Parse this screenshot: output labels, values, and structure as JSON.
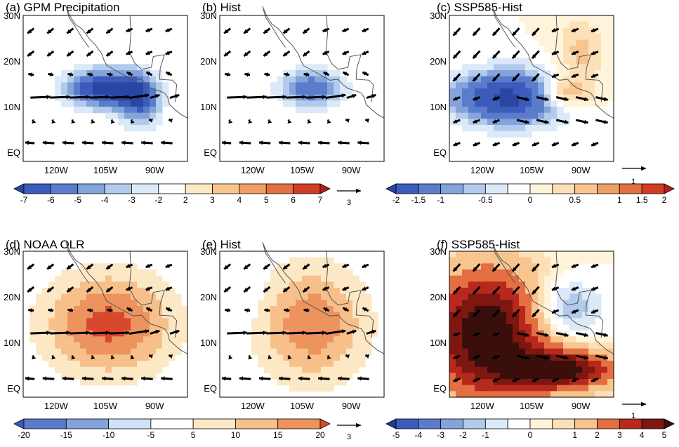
{
  "chart_data": [
    {
      "type": "heatmap",
      "title": "(a) GPM Precipitation",
      "x_ticks": [
        "120W",
        "105W",
        "90W"
      ],
      "y_ticks": [
        "30N",
        "20N",
        "10N",
        "EQ"
      ],
      "colorbar": "cb_precip",
      "overlay": "850hPa wind vectors",
      "anomaly_sign": -1,
      "centers": [
        {
          "lon": -106,
          "lat": 14,
          "lonw": 9,
          "latw": 3.5,
          "amp": 7.5
        },
        {
          "lon": -94,
          "lat": 11,
          "lonw": 5,
          "latw": 5,
          "amp": 5
        }
      ]
    },
    {
      "type": "heatmap",
      "title": "(b) Hist",
      "x_ticks": [
        "120W",
        "105W",
        "90W"
      ],
      "y_ticks": [
        "30N",
        "20N",
        "10N",
        "EQ"
      ],
      "colorbar": "cb_precip",
      "overlay": "850hPa wind vectors",
      "anomaly_sign": -1,
      "centers": [
        {
          "lon": -102,
          "lat": 14,
          "lonw": 8,
          "latw": 3.5,
          "amp": 6
        }
      ]
    },
    {
      "type": "heatmap",
      "title": "(c) SSP585-Hist",
      "x_ticks": [
        "120W",
        "105W",
        "90W"
      ],
      "y_ticks": [
        "30N",
        "20N",
        "10N",
        "EQ"
      ],
      "colorbar": "cb_diff_small",
      "overlay": "850hPa wind vectors",
      "anomaly_sign": -1,
      "centers": [
        {
          "lon": -112,
          "lat": 12,
          "lonw": 12,
          "latw": 4,
          "amp": 2.2
        },
        {
          "lon": -95,
          "lat": 13,
          "lonw": 6,
          "latw": 2.5,
          "amp": -1.2
        },
        {
          "lon": -90,
          "lat": 22,
          "lonw": 5,
          "latw": 5,
          "amp": -0.6
        }
      ]
    },
    {
      "type": "heatmap",
      "title": "(d) NOAA OLR",
      "x_ticks": [
        "120W",
        "105W",
        "90W"
      ],
      "y_ticks": [
        "30N",
        "20N",
        "10N",
        "EQ"
      ],
      "colorbar": "cb_olr",
      "overlay": "850hPa wind vectors",
      "anomaly_sign": 1,
      "centers": [
        {
          "lon": -104,
          "lat": 14,
          "lonw": 14,
          "latw": 8,
          "amp": 22
        }
      ]
    },
    {
      "type": "heatmap",
      "title": "(e) Hist",
      "x_ticks": [
        "120W",
        "105W",
        "90W"
      ],
      "y_ticks": [
        "30N",
        "20N",
        "10N",
        "EQ"
      ],
      "colorbar": "cb_olr",
      "overlay": "850hPa wind vectors",
      "anomaly_sign": 1,
      "centers": [
        {
          "lon": -102,
          "lat": 14,
          "lonw": 12,
          "latw": 9,
          "amp": 19
        },
        {
          "lon": -125,
          "lat": 20,
          "lonw": 5,
          "latw": 4,
          "amp": -7
        }
      ]
    },
    {
      "type": "heatmap",
      "title": "(f) SSP585-Hist",
      "x_ticks": [
        "120W",
        "105W",
        "90W"
      ],
      "y_ticks": [
        "30N",
        "20N",
        "10N",
        "EQ"
      ],
      "colorbar": "cb_diff_large",
      "overlay": "850hPa wind vectors",
      "anomaly_sign": 1,
      "centers": [
        {
          "lon": -118,
          "lat": 12,
          "lonw": 14,
          "latw": 10,
          "amp": 6
        },
        {
          "lon": -95,
          "lat": 4,
          "lonw": 12,
          "latw": 3,
          "amp": 5
        },
        {
          "lon": -96,
          "lat": 17,
          "lonw": 8,
          "latw": 5,
          "amp": -2.5
        }
      ]
    }
  ],
  "colorbars": {
    "cb_precip": {
      "ticks": [
        "-7",
        "-6",
        "-5",
        "-4",
        "-3",
        "-2",
        "2",
        "3",
        "4",
        "5",
        "6",
        "7"
      ],
      "levels": [
        -7,
        -6,
        -5,
        -4,
        -3,
        -2,
        2,
        3,
        4,
        5,
        6,
        7
      ],
      "colors": [
        "#2a46a3",
        "#3c5cbc",
        "#5a7ccb",
        "#83a3db",
        "#b2cbec",
        "#dbe9f8",
        "#ffffff",
        "#fde8c5",
        "#f8c58e",
        "#ef9e65",
        "#e36f42",
        "#d33d26",
        "#b41d1d"
      ]
    },
    "cb_diff_small": {
      "ticks": [
        "-2",
        "-1.5",
        "-1",
        "-0.5",
        "0",
        "0.5",
        "1",
        "1.5",
        "2"
      ],
      "levels": [
        -2,
        -1.5,
        -1,
        -0.75,
        -0.5,
        -0.25,
        0,
        0.25,
        0.5,
        0.75,
        1,
        1.5,
        2
      ],
      "colors": [
        "#2a46a3",
        "#3c5cbc",
        "#5a7ccb",
        "#83a3db",
        "#b2cbec",
        "#dbe9f8",
        "#ffffff",
        "#fff3da",
        "#fde0b7",
        "#f8c58e",
        "#ef9e65",
        "#e36f42",
        "#d33d26",
        "#b41d1d"
      ]
    },
    "cb_olr": {
      "ticks": [
        "-20",
        "-15",
        "-10",
        "-5",
        "5",
        "10",
        "15",
        "20"
      ],
      "levels": [
        -20,
        -15,
        -10,
        -5,
        5,
        10,
        15,
        20
      ],
      "colors": [
        "#3c5cbc",
        "#5a7ccb",
        "#83a3db",
        "#cfe1f6",
        "#ffffff",
        "#fde8c5",
        "#f7c08a",
        "#ec935e",
        "#d7482c"
      ]
    },
    "cb_diff_large": {
      "ticks": [
        "-5",
        "-4",
        "-3",
        "-2",
        "-1",
        "0",
        "1",
        "2",
        "3",
        "4",
        "5"
      ],
      "levels": [
        -5,
        -4,
        -3,
        -2,
        -1,
        -0.5,
        0,
        0.5,
        1,
        2,
        3,
        4,
        5
      ],
      "colors": [
        "#1e3a96",
        "#3c5cbc",
        "#5a7ccb",
        "#83a3db",
        "#b2cbec",
        "#dbe9f8",
        "#ffffff",
        "#fff3da",
        "#fde0b7",
        "#f8c58e",
        "#e36f42",
        "#b7281d",
        "#7d1710",
        "#3a0f0b"
      ]
    }
  },
  "reference_vectors": {
    "left": "3",
    "right": "1"
  }
}
